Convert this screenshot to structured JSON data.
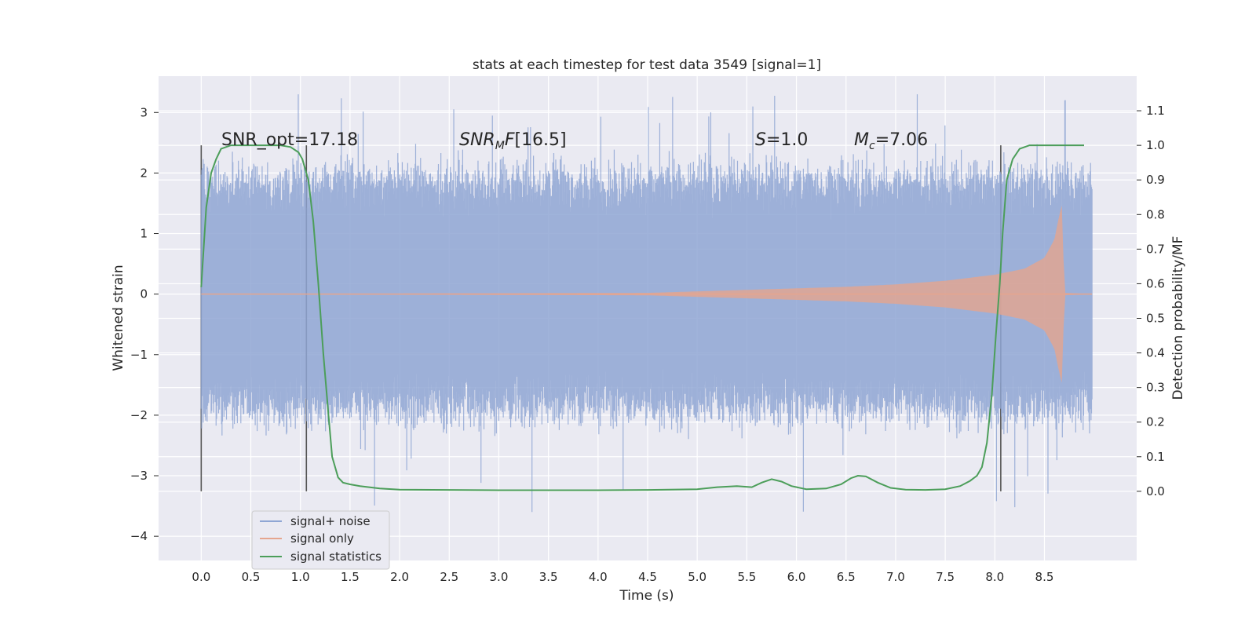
{
  "chart_data": {
    "type": "line",
    "title": "stats at each timestep for test data 3549 [signal=1]",
    "xlabel": "Time (s)",
    "ylabel": "Whitened strain",
    "ylabel_right": "Detection probability/MF",
    "xlim": [
      -0.43,
      9.43
    ],
    "ylim": [
      -4.4,
      3.6
    ],
    "ylim_right": [
      -0.2,
      1.2
    ],
    "x_ticks": [
      "0.0",
      "0.5",
      "1.0",
      "1.5",
      "2.0",
      "2.5",
      "3.0",
      "3.5",
      "4.0",
      "4.5",
      "5.0",
      "5.5",
      "6.0",
      "6.5",
      "7.0",
      "7.5",
      "8.0",
      "8.5"
    ],
    "y_ticks": [
      "3",
      "2",
      "1",
      "0",
      "−1",
      "−2",
      "−3",
      "−4"
    ],
    "y_ticks_right": [
      "1.1",
      "1.0",
      "0.9",
      "0.8",
      "0.7",
      "0.6",
      "0.5",
      "0.4",
      "0.3",
      "0.2",
      "0.1",
      "0.0"
    ],
    "grid": true,
    "legend_position": "lower-left",
    "annotations": {
      "snr_opt": "SNR_opt=17.18",
      "snr_mf": "[16.5]",
      "s_value": "=1.0",
      "mc_value": "=7.06"
    },
    "vertical_markers_x": [
      0.0,
      1.06,
      8.06
    ],
    "series": [
      {
        "name": "signal+ noise",
        "color": "#8fa6d4",
        "axis": "left",
        "description_range": [
          0.0,
          8.98
        ],
        "envelope": {
          "typical_abs": 1.4,
          "peak_abs": 3.3
        }
      },
      {
        "name": "signal only",
        "color": "#e5a58e",
        "axis": "left",
        "envelope": {
          "x": [
            0.0,
            4.5,
            5.5,
            6.5,
            7.0,
            7.5,
            8.0,
            8.3,
            8.5,
            8.6,
            8.65,
            8.68,
            8.7,
            8.98
          ],
          "amp": [
            0.0,
            0.02,
            0.07,
            0.12,
            0.16,
            0.22,
            0.32,
            0.42,
            0.6,
            0.9,
            1.3,
            1.5,
            0.02,
            0.0
          ]
        }
      },
      {
        "name": "signal statistics",
        "color": "#4c9e5a",
        "axis": "right",
        "x": [
          0.0,
          0.05,
          0.1,
          0.15,
          0.2,
          0.3,
          0.4,
          0.6,
          0.8,
          0.9,
          0.98,
          1.02,
          1.08,
          1.13,
          1.18,
          1.23,
          1.28,
          1.32,
          1.38,
          1.43,
          1.5,
          1.6,
          1.8,
          2.0,
          2.5,
          3.0,
          3.5,
          4.0,
          4.5,
          5.0,
          5.2,
          5.4,
          5.55,
          5.65,
          5.75,
          5.85,
          5.95,
          6.1,
          6.3,
          6.45,
          6.55,
          6.62,
          6.7,
          6.82,
          6.95,
          7.1,
          7.3,
          7.5,
          7.65,
          7.75,
          7.82,
          7.87,
          7.92,
          7.97,
          8.01,
          8.05,
          8.08,
          8.12,
          8.18,
          8.25,
          8.35,
          8.5,
          8.7,
          8.9
        ],
        "y": [
          0.59,
          0.82,
          0.92,
          0.96,
          0.99,
          1.0,
          1.0,
          1.0,
          1.0,
          0.995,
          0.98,
          0.96,
          0.9,
          0.78,
          0.6,
          0.4,
          0.23,
          0.1,
          0.04,
          0.025,
          0.02,
          0.015,
          0.008,
          0.005,
          0.004,
          0.003,
          0.003,
          0.003,
          0.004,
          0.006,
          0.012,
          0.015,
          0.012,
          0.025,
          0.035,
          0.028,
          0.015,
          0.006,
          0.008,
          0.02,
          0.038,
          0.045,
          0.043,
          0.025,
          0.01,
          0.005,
          0.004,
          0.006,
          0.015,
          0.03,
          0.045,
          0.07,
          0.14,
          0.28,
          0.45,
          0.6,
          0.75,
          0.9,
          0.96,
          0.99,
          1.0,
          1.0,
          1.0,
          1.0
        ]
      }
    ]
  }
}
